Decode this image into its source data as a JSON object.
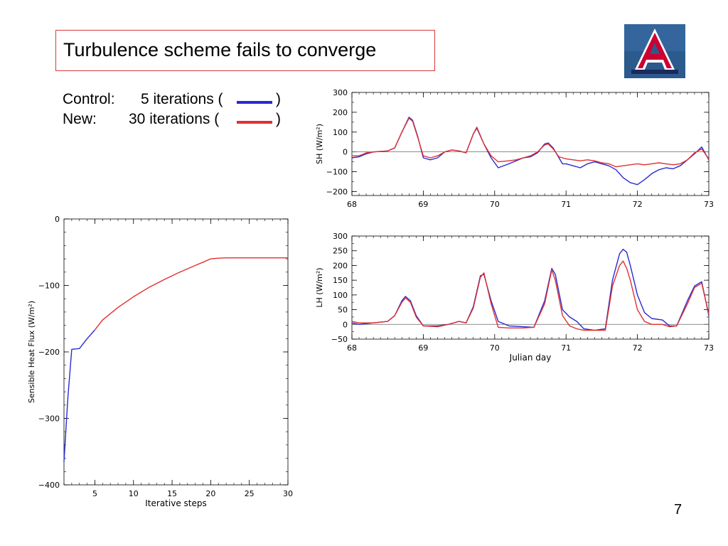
{
  "slide": {
    "title": "Turbulence scheme fails to converge",
    "page_number": "7",
    "legend": {
      "control_label": "Control:",
      "control_text": "5 iterations (",
      "new_label": "New:",
      "new_text": "30 iterations (",
      "close_paren": ")",
      "control_color": "#2a2ad0",
      "new_color": "#e03030"
    },
    "logo": {
      "letter": "A",
      "icon": "university-arizona-logo",
      "bg": "#2c5a8c",
      "red": "#cc0033",
      "navy": "#1a2a5c"
    }
  },
  "chart_data": [
    {
      "id": "sh",
      "type": "line",
      "title": "",
      "xlabel": "",
      "ylabel": "SH (W/m²)",
      "xlim": [
        68,
        73
      ],
      "ylim": [
        -220,
        300
      ],
      "x_ticks": [
        68,
        69,
        70,
        71,
        72,
        73
      ],
      "y_ticks": [
        -200,
        -100,
        0,
        100,
        200,
        300
      ],
      "x_tick_labels": [
        "68",
        "69",
        "70",
        "71",
        "72",
        "73"
      ],
      "y_tick_labels": [
        "−200",
        "−100",
        "0",
        "100",
        "200",
        "300"
      ],
      "zero_line": true,
      "series": [
        {
          "color": "#2a2ad0",
          "x": [
            68.0,
            68.1,
            68.2,
            68.3,
            68.5,
            68.6,
            68.7,
            68.8,
            68.85,
            68.92,
            69.0,
            69.1,
            69.2,
            69.3,
            69.4,
            69.5,
            69.6,
            69.7,
            69.75,
            69.85,
            69.95,
            70.05,
            70.2,
            70.3,
            70.4,
            70.5,
            70.6,
            70.7,
            70.75,
            70.82,
            70.9,
            70.95,
            71.0,
            71.1,
            71.2,
            71.3,
            71.4,
            71.5,
            71.6,
            71.7,
            71.8,
            71.9,
            72.0,
            72.1,
            72.2,
            72.3,
            72.4,
            72.5,
            72.6,
            72.7,
            72.8,
            72.9,
            73.0
          ],
          "y": [
            -30,
            -25,
            -10,
            0,
            5,
            20,
            100,
            175,
            160,
            80,
            -30,
            -40,
            -30,
            0,
            10,
            5,
            -5,
            90,
            120,
            40,
            -30,
            -80,
            -60,
            -45,
            -30,
            -25,
            -5,
            40,
            45,
            20,
            -30,
            -60,
            -60,
            -70,
            -80,
            -60,
            -50,
            -60,
            -70,
            -90,
            -130,
            -155,
            -165,
            -140,
            -110,
            -90,
            -80,
            -85,
            -70,
            -40,
            -10,
            25,
            -40
          ]
        },
        {
          "color": "#e03030",
          "x": [
            68.0,
            68.1,
            68.2,
            68.3,
            68.5,
            68.6,
            68.7,
            68.8,
            68.85,
            68.92,
            69.0,
            69.1,
            69.2,
            69.3,
            69.4,
            69.5,
            69.6,
            69.7,
            69.75,
            69.85,
            69.95,
            70.05,
            70.2,
            70.3,
            70.4,
            70.5,
            70.6,
            70.7,
            70.75,
            70.82,
            70.9,
            70.95,
            71.0,
            71.1,
            71.2,
            71.3,
            71.4,
            71.5,
            71.6,
            71.7,
            71.8,
            71.9,
            72.0,
            72.1,
            72.2,
            72.3,
            72.4,
            72.5,
            72.6,
            72.7,
            72.8,
            72.9,
            73.0
          ],
          "y": [
            -20,
            -20,
            -5,
            0,
            5,
            20,
            100,
            170,
            155,
            75,
            -20,
            -30,
            -20,
            0,
            10,
            5,
            -5,
            90,
            125,
            40,
            -20,
            -50,
            -45,
            -40,
            -30,
            -20,
            0,
            35,
            40,
            15,
            -25,
            -30,
            -35,
            -40,
            -45,
            -40,
            -45,
            -55,
            -60,
            -75,
            -70,
            -65,
            -60,
            -65,
            -60,
            -55,
            -60,
            -65,
            -60,
            -40,
            -5,
            15,
            -35
          ]
        }
      ]
    },
    {
      "id": "lh",
      "type": "line",
      "title": "",
      "xlabel": "Julian day",
      "ylabel": "LH (W/m²)",
      "xlim": [
        68,
        73
      ],
      "ylim": [
        -50,
        300
      ],
      "x_ticks": [
        68,
        69,
        70,
        71,
        72,
        73
      ],
      "y_ticks": [
        -50,
        0,
        50,
        100,
        150,
        200,
        250,
        300
      ],
      "x_tick_labels": [
        "68",
        "69",
        "70",
        "71",
        "72",
        "73"
      ],
      "y_tick_labels": [
        "−50",
        "0",
        "50",
        "100",
        "150",
        "200",
        "250",
        "300"
      ],
      "zero_line": true,
      "series": [
        {
          "color": "#2a2ad0",
          "x": [
            68.0,
            68.1,
            68.3,
            68.5,
            68.6,
            68.7,
            68.75,
            68.82,
            68.9,
            69.0,
            69.2,
            69.35,
            69.5,
            69.6,
            69.7,
            69.8,
            69.85,
            69.95,
            70.05,
            70.2,
            70.4,
            70.55,
            70.7,
            70.8,
            70.85,
            70.95,
            71.05,
            71.15,
            71.25,
            71.4,
            71.55,
            71.65,
            71.75,
            71.8,
            71.85,
            71.9,
            72.0,
            72.1,
            72.2,
            72.35,
            72.45,
            72.55,
            72.7,
            72.8,
            72.9,
            73.0
          ],
          "y": [
            5,
            0,
            5,
            10,
            30,
            80,
            95,
            80,
            30,
            -5,
            -5,
            0,
            10,
            5,
            60,
            165,
            170,
            80,
            10,
            -5,
            -8,
            -10,
            80,
            190,
            170,
            50,
            25,
            10,
            -15,
            -20,
            -15,
            150,
            240,
            255,
            245,
            200,
            100,
            40,
            20,
            15,
            -5,
            -5,
            80,
            130,
            145,
            30
          ]
        },
        {
          "color": "#e03030",
          "x": [
            68.0,
            68.1,
            68.3,
            68.5,
            68.6,
            68.7,
            68.75,
            68.82,
            68.9,
            69.0,
            69.2,
            69.35,
            69.5,
            69.6,
            69.7,
            69.8,
            69.85,
            69.95,
            70.05,
            70.2,
            70.4,
            70.55,
            70.7,
            70.8,
            70.85,
            70.95,
            71.05,
            71.15,
            71.25,
            71.4,
            71.55,
            71.65,
            71.75,
            71.8,
            71.85,
            71.9,
            72.0,
            72.1,
            72.2,
            72.35,
            72.45,
            72.55,
            72.7,
            72.8,
            72.9,
            73.0
          ],
          "y": [
            10,
            5,
            5,
            10,
            30,
            75,
            90,
            75,
            25,
            -5,
            -8,
            0,
            10,
            5,
            55,
            160,
            175,
            70,
            -10,
            -12,
            -12,
            -10,
            70,
            185,
            150,
            30,
            -5,
            -15,
            -20,
            -20,
            -20,
            130,
            200,
            215,
            190,
            150,
            50,
            10,
            0,
            0,
            -8,
            -5,
            70,
            125,
            140,
            35
          ]
        }
      ]
    },
    {
      "id": "iter",
      "type": "line",
      "title": "",
      "xlabel": "Iterative steps",
      "ylabel": "Sensible Heat Flux (W/m²)",
      "xlim": [
        1,
        30
      ],
      "ylim": [
        -400,
        0
      ],
      "x_ticks": [
        5,
        10,
        15,
        20,
        25,
        30
      ],
      "y_ticks": [
        -400,
        -300,
        -200,
        -100,
        0
      ],
      "x_tick_labels": [
        "5",
        "10",
        "15",
        "20",
        "25",
        "30"
      ],
      "y_tick_labels": [
        "−400",
        "−300",
        "−200",
        "−100",
        "0"
      ],
      "zero_line": false,
      "series": [
        {
          "color": "#2a2ad0",
          "x": [
            1,
            1.5,
            2,
            3,
            4,
            5
          ],
          "y": [
            -365,
            -270,
            -196,
            -195,
            -180,
            -167
          ]
        },
        {
          "color": "#e03030",
          "x": [
            5,
            6,
            8,
            10,
            12,
            14,
            16,
            18,
            19,
            20,
            21,
            22,
            25,
            30
          ],
          "y": [
            -167,
            -152,
            -133,
            -117,
            -103,
            -91,
            -80,
            -70,
            -65,
            -60,
            -59,
            -58.5,
            -58.5,
            -58.5
          ]
        }
      ]
    }
  ]
}
